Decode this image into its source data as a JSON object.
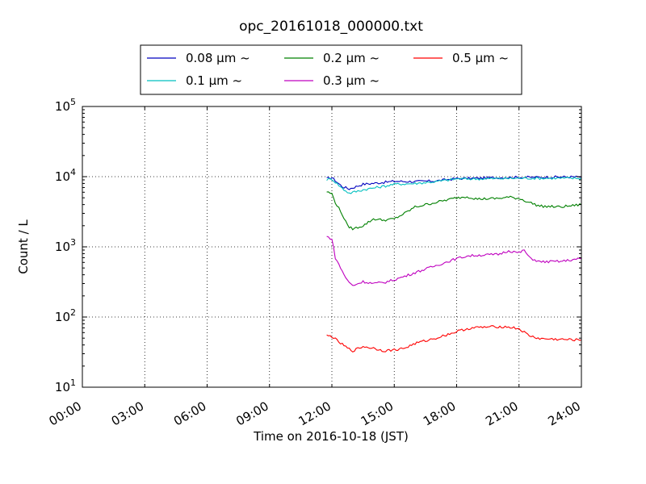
{
  "chart_data": {
    "type": "line",
    "title": "opc_20161018_000000.txt",
    "xlabel": "Time on 2016-10-18 (JST)",
    "ylabel": "Count / L",
    "yscale": "log",
    "ylim": [
      10,
      100000
    ],
    "xlim": [
      "00:00",
      "24:00"
    ],
    "grid": true,
    "legend_placement": "top-center",
    "x_ticks": [
      "00:00",
      "03:00",
      "06:00",
      "09:00",
      "12:00",
      "15:00",
      "18:00",
      "21:00",
      "24:00"
    ],
    "y_ticks": [
      {
        "value": 10,
        "base": "10",
        "exp": "1"
      },
      {
        "value": 100,
        "base": "10",
        "exp": "2"
      },
      {
        "value": 1000,
        "base": "10",
        "exp": "3"
      },
      {
        "value": 10000,
        "base": "10",
        "exp": "4"
      },
      {
        "value": 100000,
        "base": "10",
        "exp": "5"
      }
    ],
    "series": [
      {
        "name": "0.08 μm ~",
        "color": "#0000bf",
        "points": [
          [
            "11:45",
            9400
          ],
          [
            "12:00",
            9700
          ],
          [
            "12:30",
            7200
          ],
          [
            "12:50",
            6700
          ],
          [
            "13:30",
            7800
          ],
          [
            "14:30",
            8300
          ],
          [
            "15:00",
            8600
          ],
          [
            "16:00",
            8500
          ],
          [
            "17:00",
            8700
          ],
          [
            "18:00",
            9400
          ],
          [
            "19:00",
            9500
          ],
          [
            "20:00",
            9700
          ],
          [
            "21:00",
            9800
          ],
          [
            "22:00",
            9800
          ],
          [
            "23:00",
            9900
          ],
          [
            "24:00",
            9900
          ]
        ]
      },
      {
        "name": "0.1 μm ~",
        "color": "#00bfbf",
        "points": [
          [
            "11:45",
            9100
          ],
          [
            "12:00",
            9300
          ],
          [
            "12:30",
            6800
          ],
          [
            "12:50",
            5800
          ],
          [
            "13:30",
            6500
          ],
          [
            "14:30",
            7300
          ],
          [
            "15:00",
            7800
          ],
          [
            "16:00",
            8000
          ],
          [
            "17:00",
            8500
          ],
          [
            "18:00",
            9300
          ],
          [
            "19:00",
            9300
          ],
          [
            "20:00",
            9400
          ],
          [
            "21:00",
            9500
          ],
          [
            "22:00",
            9500
          ],
          [
            "23:00",
            9500
          ],
          [
            "24:00",
            9500
          ]
        ]
      },
      {
        "name": "0.2 μm ~",
        "color": "#008000",
        "points": [
          [
            "11:45",
            6100
          ],
          [
            "12:00",
            5700
          ],
          [
            "12:10",
            4300
          ],
          [
            "12:30",
            2900
          ],
          [
            "12:45",
            2000
          ],
          [
            "13:00",
            1800
          ],
          [
            "13:30",
            2000
          ],
          [
            "14:00",
            2500
          ],
          [
            "14:30",
            2400
          ],
          [
            "15:00",
            2500
          ],
          [
            "15:30",
            3000
          ],
          [
            "16:00",
            3700
          ],
          [
            "17:00",
            4300
          ],
          [
            "18:00",
            5000
          ],
          [
            "18:30",
            5200
          ],
          [
            "19:00",
            4800
          ],
          [
            "20:00",
            4900
          ],
          [
            "20:30",
            5100
          ],
          [
            "21:00",
            4900
          ],
          [
            "21:30",
            4300
          ],
          [
            "22:00",
            3800
          ],
          [
            "23:00",
            3700
          ],
          [
            "24:00",
            4000
          ]
        ]
      },
      {
        "name": "0.3 μm ~",
        "color": "#bf00bf",
        "points": [
          [
            "11:45",
            1400
          ],
          [
            "12:00",
            1300
          ],
          [
            "12:10",
            700
          ],
          [
            "12:30",
            450
          ],
          [
            "12:45",
            330
          ],
          [
            "13:00",
            280
          ],
          [
            "13:30",
            320
          ],
          [
            "14:00",
            300
          ],
          [
            "14:30",
            310
          ],
          [
            "15:00",
            340
          ],
          [
            "15:30",
            380
          ],
          [
            "16:00",
            430
          ],
          [
            "17:00",
            540
          ],
          [
            "18:00",
            680
          ],
          [
            "18:30",
            740
          ],
          [
            "19:00",
            760
          ],
          [
            "20:00",
            780
          ],
          [
            "20:30",
            880
          ],
          [
            "21:00",
            820
          ],
          [
            "21:15",
            900
          ],
          [
            "21:30",
            700
          ],
          [
            "22:00",
            610
          ],
          [
            "23:00",
            620
          ],
          [
            "24:00",
            680
          ]
        ]
      },
      {
        "name": "0.5 μm ~",
        "color": "#ff0000",
        "points": [
          [
            "11:45",
            54
          ],
          [
            "12:00",
            53
          ],
          [
            "12:20",
            44
          ],
          [
            "12:45",
            36
          ],
          [
            "13:00",
            33
          ],
          [
            "13:30",
            38
          ],
          [
            "14:00",
            36
          ],
          [
            "14:30",
            33
          ],
          [
            "15:00",
            34
          ],
          [
            "15:30",
            36
          ],
          [
            "16:00",
            42
          ],
          [
            "17:00",
            50
          ],
          [
            "18:00",
            62
          ],
          [
            "18:30",
            68
          ],
          [
            "19:00",
            71
          ],
          [
            "20:00",
            73
          ],
          [
            "20:30",
            72
          ],
          [
            "21:00",
            68
          ],
          [
            "21:30",
            54
          ],
          [
            "22:00",
            49
          ],
          [
            "23:00",
            48
          ],
          [
            "24:00",
            47
          ]
        ]
      }
    ]
  }
}
